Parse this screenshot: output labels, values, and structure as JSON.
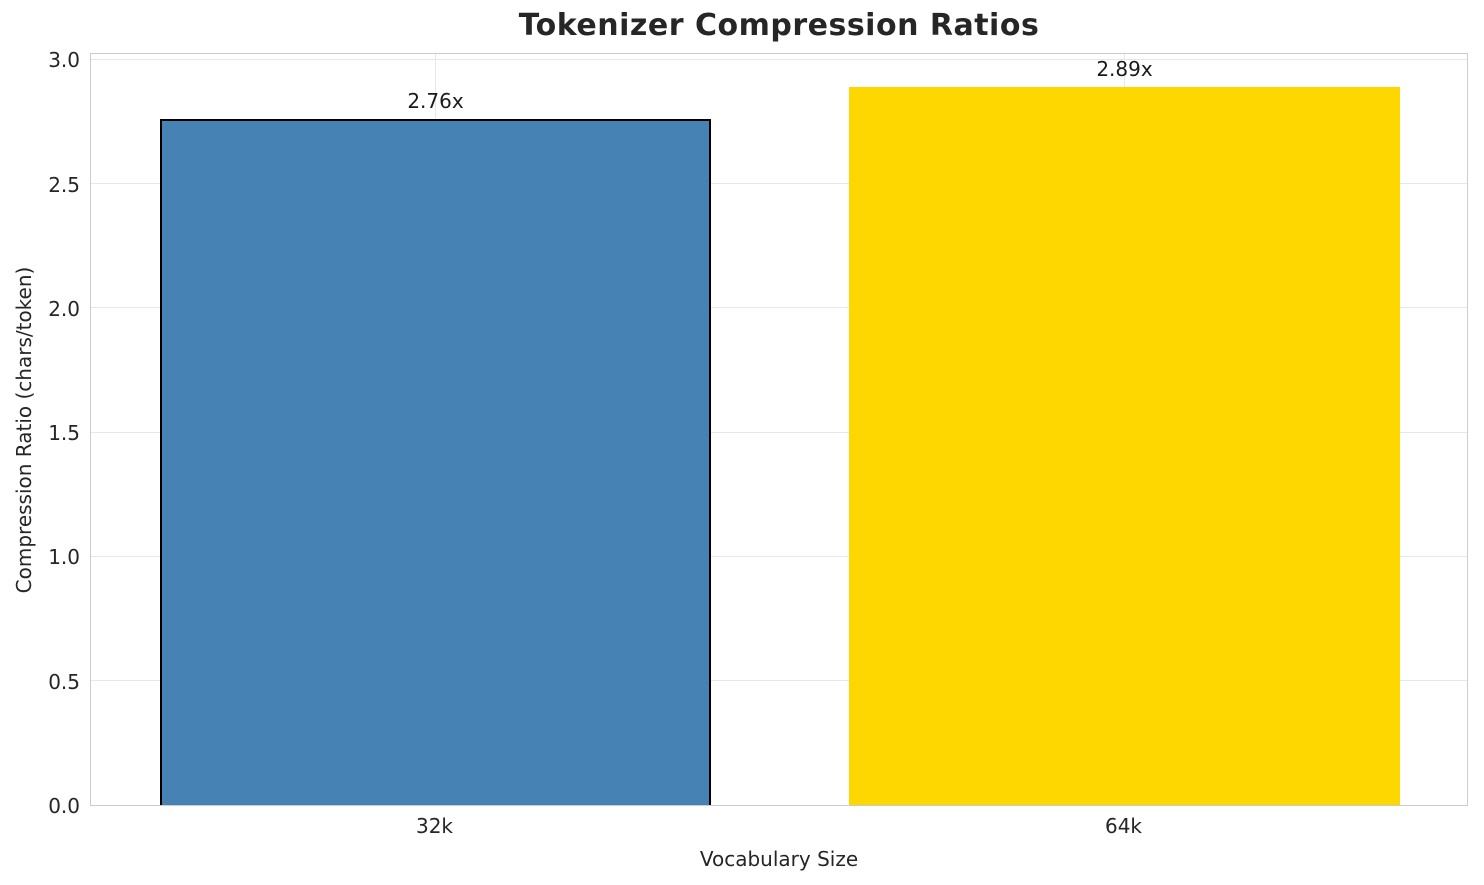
{
  "figure": {
    "background_color": "#ffffff",
    "grid_color": "#e7e7e7",
    "spine_color": "#cccccc",
    "title_color": "#262626",
    "tick_label_color": "#262626"
  },
  "chart_data": {
    "type": "bar",
    "title": "Tokenizer Compression Ratios",
    "xlabel": "Vocabulary Size",
    "ylabel": "Compression Ratio (chars/token)",
    "categories": [
      "32k",
      "64k"
    ],
    "values": [
      2.76,
      2.89
    ],
    "bar_labels": [
      "2.76x",
      "2.89x"
    ],
    "bar_colors": [
      "#4682B4",
      "#FFD700"
    ],
    "bar_edge_colors": [
      "#000000",
      "none"
    ],
    "bar_width_fraction": 0.8,
    "ylim": [
      0,
      3.03
    ],
    "yticks": [
      {
        "value": 0.0,
        "label": "0.0"
      },
      {
        "value": 0.5,
        "label": "0.5"
      },
      {
        "value": 1.0,
        "label": "1.0"
      },
      {
        "value": 1.5,
        "label": "1.5"
      },
      {
        "value": 2.0,
        "label": "2.0"
      },
      {
        "value": 2.5,
        "label": "2.5"
      },
      {
        "value": 3.0,
        "label": "3.0"
      }
    ],
    "grid": true,
    "legend": null
  }
}
